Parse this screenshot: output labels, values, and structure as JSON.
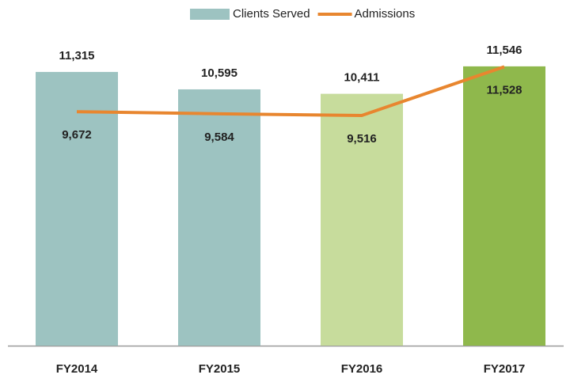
{
  "chart_data": {
    "type": "bar-line",
    "categories": [
      "FY2014",
      "FY2015",
      "FY2016",
      "FY2017"
    ],
    "series": [
      {
        "name": "Clients Served",
        "type": "bar",
        "color": "#9dc3c1",
        "colors": [
          "#9dc3c1",
          "#9dc3c1",
          "#c7dc9c",
          "#8fb84c"
        ],
        "values": [
          11315,
          10595,
          10411,
          11546
        ],
        "value_labels": [
          "11,315",
          "10,595",
          "10,411",
          "11,546"
        ]
      },
      {
        "name": "Admissions",
        "type": "line",
        "color": "#e8862f",
        "values": [
          9672,
          9584,
          9516,
          11528
        ],
        "value_labels": [
          "9,672",
          "9,584",
          "9,516",
          "11,528"
        ]
      }
    ],
    "ylim": [
      0,
      12000
    ],
    "legend": "top"
  }
}
